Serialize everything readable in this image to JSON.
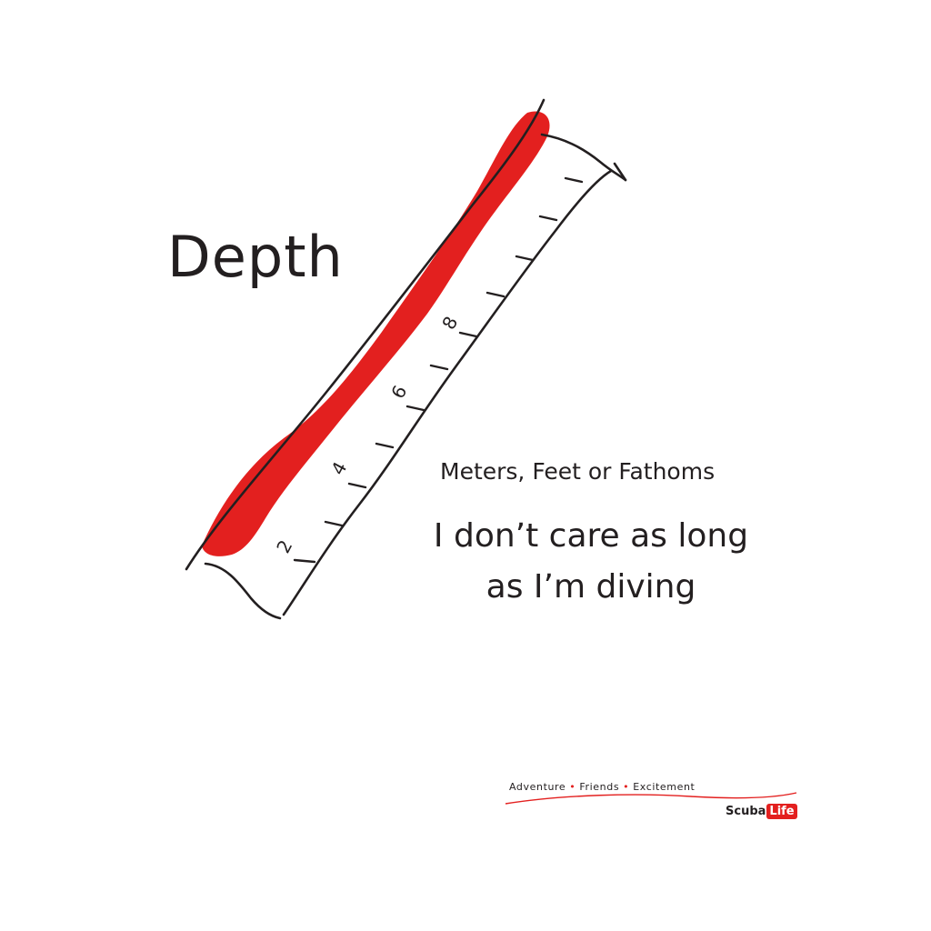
{
  "title": "Depth",
  "subtitle": "Meters, Feet or Fathoms",
  "quote": {
    "line1": "I don’t care as long",
    "line2": "as I’m diving"
  },
  "ruler": {
    "tick_labels": [
      "2",
      "4",
      "6",
      "8"
    ]
  },
  "footer": {
    "tagline_items": [
      "Adventure",
      "Friends",
      "Excitement"
    ],
    "brand_part1": "Scuba",
    "brand_part2": "Life"
  },
  "colors": {
    "accent": "#e3201f",
    "ink": "#231f20"
  }
}
